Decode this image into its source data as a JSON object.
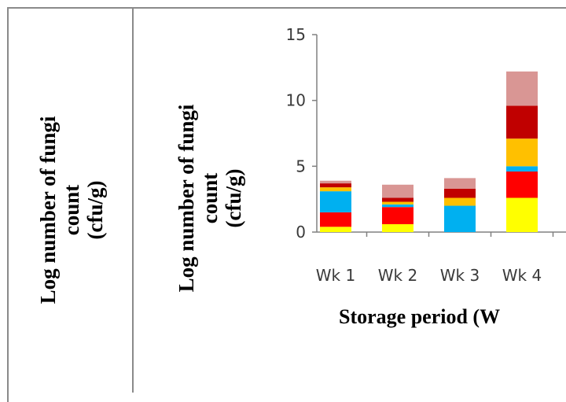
{
  "colors": {
    "frame": "#8a8a8a",
    "axis": "#808080",
    "text": "#3a3a3a"
  },
  "left_panel": {
    "ylabel_lines": [
      "Log number of fungi",
      "count",
      "(cfu/g)"
    ]
  },
  "chart_data": {
    "type": "bar",
    "stacked": true,
    "categories": [
      "Wk 1",
      "Wk 2",
      "Wk 3",
      "Wk 4"
    ],
    "xlabel": "Storage period (W",
    "ylabel_lines": [
      "Log number of fungi",
      "count",
      "(cfu/g)"
    ],
    "ylim": [
      0,
      15
    ],
    "yticks": [
      0,
      5,
      10,
      15
    ],
    "grid": false,
    "series": [
      {
        "color": "#ffff00",
        "values": [
          0.4,
          0.6,
          0,
          2.6
        ]
      },
      {
        "color": "#ff0000",
        "values": [
          1.1,
          1.3,
          0,
          2.0
        ]
      },
      {
        "color": "#00b0f0",
        "values": [
          1.6,
          0.2,
          2.0,
          0.4
        ]
      },
      {
        "color": "#ffc000",
        "values": [
          0.3,
          0.2,
          0.6,
          2.1
        ]
      },
      {
        "color": "#c00000",
        "values": [
          0.3,
          0.3,
          0.7,
          2.5
        ]
      },
      {
        "color": "#d99694",
        "values": [
          0.2,
          1.0,
          0.8,
          2.6
        ]
      }
    ]
  }
}
